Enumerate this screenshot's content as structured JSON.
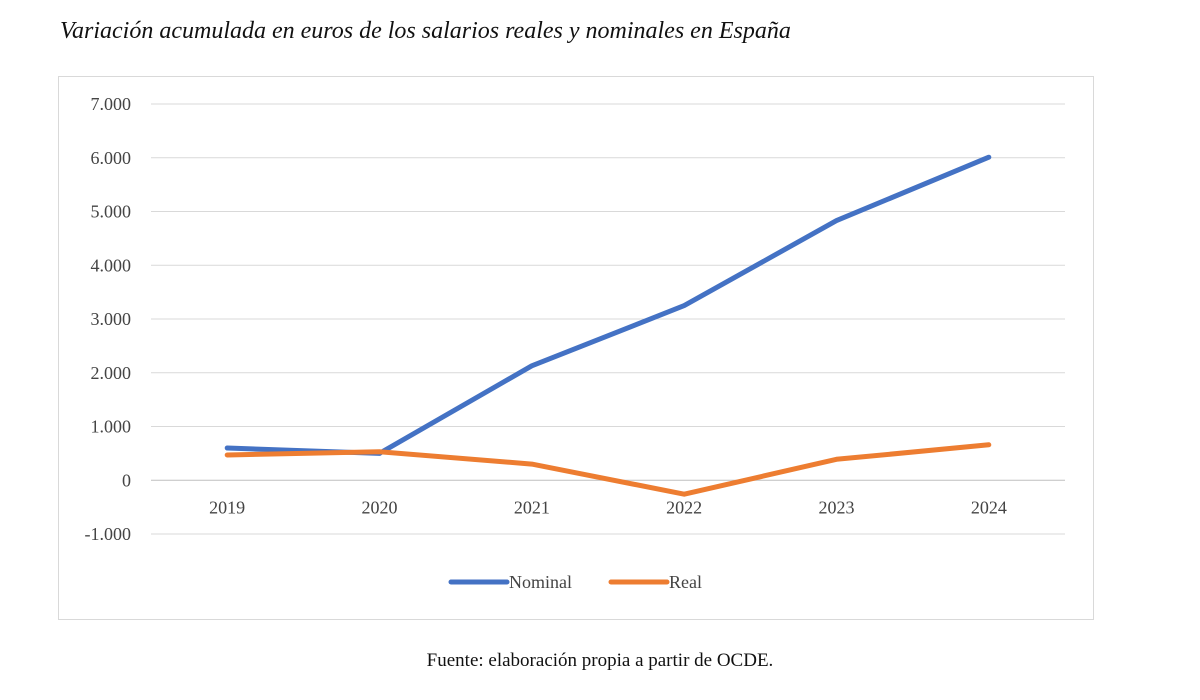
{
  "title": "Variación acumulada en euros de los salarios reales y nominales en España",
  "source": "Fuente: elaboración propia a partir de OCDE.",
  "chart_data": {
    "type": "line",
    "title": "Variación acumulada en euros de los salarios reales y nominales en España",
    "xlabel": "",
    "ylabel": "",
    "x": [
      "2019",
      "2020",
      "2021",
      "2022",
      "2023",
      "2024"
    ],
    "ylim": [
      -1000,
      7000
    ],
    "yticks": [
      7000,
      6000,
      5000,
      4000,
      3000,
      2000,
      1000,
      0,
      -1000
    ],
    "ytick_labels": [
      "7.000",
      "6.000",
      "5.000",
      "4.000",
      "3.000",
      "2.000",
      "1.000",
      "0",
      "-1.000"
    ],
    "grid": true,
    "legend_position": "bottom",
    "series": [
      {
        "name": "Nominal",
        "color": "#4472C4",
        "values": [
          600,
          500,
          2130,
          3250,
          4830,
          6010
        ]
      },
      {
        "name": "Real",
        "color": "#ED7D31",
        "values": [
          470,
          530,
          300,
          -260,
          390,
          660
        ]
      }
    ]
  }
}
